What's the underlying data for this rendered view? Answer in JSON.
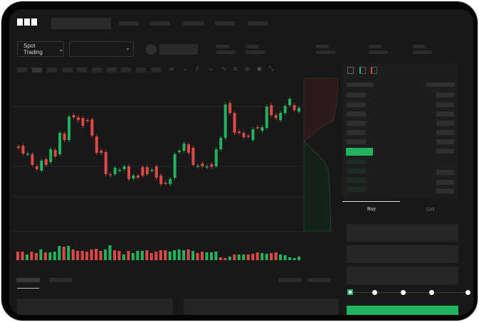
{
  "brand": {
    "logo": "OKX"
  },
  "toolbar": {
    "market_type": "Spot Trading",
    "pair_selector": ""
  },
  "icons": [
    "chevron-down-icon",
    "indicator-icon",
    "line-tool-icon",
    "brush-icon",
    "camera-icon",
    "settings-icon",
    "fullscreen-icon",
    "orderbook-both-icon",
    "orderbook-bids-icon",
    "orderbook-asks-icon"
  ],
  "trade": {
    "tabs": [
      {
        "label": "Buy",
        "active": true
      },
      {
        "label": "Sell",
        "active": false
      }
    ],
    "slider_percent": 0,
    "submit": ""
  },
  "colors": {
    "up": "#22b35e",
    "down": "#e04848",
    "background": "#181818",
    "accent": "#22b35e"
  },
  "chart_data": {
    "type": "candlestick",
    "candles": [
      [
        56,
        54
      ],
      [
        57,
        46
      ],
      [
        45,
        46
      ],
      [
        45,
        30
      ],
      [
        28,
        24
      ],
      [
        22,
        36
      ],
      [
        38,
        30
      ],
      [
        34,
        52
      ],
      [
        51,
        42
      ],
      [
        45,
        75
      ],
      [
        74,
        65
      ],
      [
        65,
        98
      ],
      [
        100,
        97
      ],
      [
        97,
        93
      ],
      [
        96,
        85
      ],
      [
        93,
        92
      ],
      [
        94,
        71
      ],
      [
        70,
        47
      ],
      [
        50,
        47
      ],
      [
        48,
        17
      ],
      [
        17,
        16
      ],
      [
        17,
        26
      ],
      [
        22,
        23
      ],
      [
        24,
        28
      ],
      [
        28,
        10
      ],
      [
        11,
        15
      ],
      [
        15,
        12
      ],
      [
        27,
        15
      ],
      [
        27,
        17
      ],
      [
        22,
        23
      ],
      [
        28,
        12
      ],
      [
        15,
        3
      ],
      [
        5,
        4
      ],
      [
        3,
        10
      ],
      [
        12,
        45
      ],
      [
        48,
        50
      ],
      [
        50,
        60
      ],
      [
        59,
        47
      ],
      [
        54,
        30
      ],
      [
        28,
        29
      ],
      [
        32,
        28
      ],
      [
        27,
        28
      ],
      [
        31,
        27
      ],
      [
        28,
        52
      ],
      [
        52,
        68
      ],
      [
        68,
        115
      ],
      [
        117,
        103
      ],
      [
        103,
        75
      ],
      [
        77,
        75
      ],
      [
        75,
        69
      ],
      [
        71,
        70
      ],
      [
        65,
        80
      ],
      [
        83,
        82
      ],
      [
        78,
        83
      ],
      [
        82,
        112
      ],
      [
        114,
        100
      ],
      [
        100,
        96
      ],
      [
        93,
        103
      ],
      [
        103,
        113
      ],
      [
        114,
        123
      ],
      [
        114,
        107
      ],
      [
        105,
        110
      ]
    ],
    "volume": [
      12,
      12,
      8,
      12,
      10,
      15,
      11,
      11,
      12,
      20,
      19,
      20,
      15,
      13,
      13,
      12,
      15,
      16,
      13,
      15,
      21,
      14,
      13,
      8,
      13,
      10,
      13,
      13,
      14,
      10,
      12,
      14,
      14,
      12,
      14,
      15,
      14,
      15,
      13,
      10,
      12,
      11,
      11,
      12,
      4,
      3,
      5,
      8,
      8,
      8,
      8,
      9,
      11,
      10,
      9,
      10,
      11,
      8,
      7,
      4,
      3,
      5
    ],
    "volume_up": [
      0,
      0,
      1,
      0,
      0,
      1,
      0,
      1,
      1,
      1,
      0,
      1,
      0,
      0,
      0,
      0,
      0,
      0,
      0,
      1,
      1,
      0,
      0,
      1,
      0,
      1,
      1,
      1,
      0,
      0,
      0,
      0,
      0,
      1,
      1,
      1,
      1,
      0,
      1,
      0,
      0,
      1,
      1,
      1,
      0,
      0,
      1,
      0,
      1,
      1,
      0,
      0,
      0,
      1,
      1,
      0,
      0,
      1,
      1,
      1,
      1,
      1
    ],
    "grid": true
  }
}
